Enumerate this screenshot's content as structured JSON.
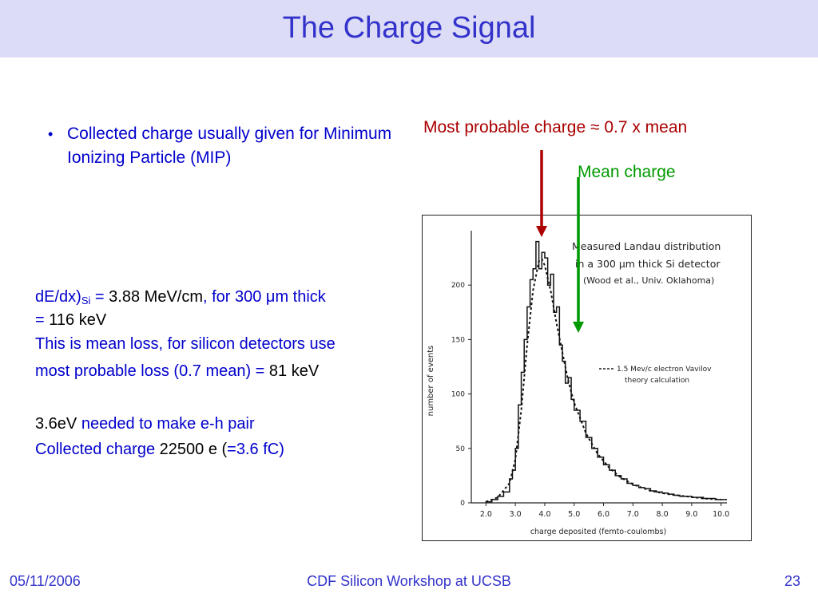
{
  "slide": {
    "title": "The Charge Signal",
    "bullet": {
      "glyph": "•",
      "text": "Collected charge usually given for Minimum Ionizing Particle (MIP)"
    },
    "dedx": {
      "label": "dE/dx)",
      "open_paren": "",
      "sub": "Si",
      "eq": " = ",
      "value": "3.88 MeV/cm",
      "rest": ", for 300 μm thick",
      "line2_eq": "= ",
      "line2_value": "116 keV"
    },
    "mean_loss_line": "This is mean loss, for silicon detectors use",
    "most_probable_line": {
      "text": "most probable loss (0.7 mean) = ",
      "value": "81 keV"
    },
    "eh_pair": {
      "value": "3.6eV",
      "text": " needed to make e-h pair"
    },
    "collected": {
      "label": "Collected charge  ",
      "value": "22500 e",
      "paren_open": " (",
      "fc": "=3.6 fC)"
    },
    "annotations": {
      "most_probable": "Most probable charge ≈ 0.7 x mean",
      "mean": "Mean charge"
    },
    "colors": {
      "title_bar": "#dcdcf6",
      "title_text": "#3333cc",
      "body_text": "#0000cc",
      "most_probable_arrow": "#aa0000",
      "mean_arrow": "#009900"
    }
  },
  "figure": {
    "caption_lines": [
      "Measured Landau distribution",
      "in a 300 μm thick Si detector",
      "(Wood et al., Univ. Oklahoma)"
    ],
    "legend_text_lines": [
      "1.5 Mev/c electron Vavilov",
      "theory calculation"
    ],
    "x_axis_label": "charge deposited (femto-coulombs)",
    "y_axis_label": "number of events",
    "x_ticks": [
      "2.0",
      "3.0",
      "4.0",
      "5.0",
      "6.0",
      "7.0",
      "8.0",
      "9.0",
      "10.0"
    ],
    "y_ticks": [
      "0",
      "50",
      "100",
      "150",
      "200"
    ]
  },
  "chart_data": {
    "type": "line",
    "title": "",
    "xlabel": "charge deposited (femto-coulombs)",
    "ylabel": "number of events",
    "xlim": [
      1.5,
      10.2
    ],
    "ylim": [
      0,
      250
    ],
    "grid": false,
    "legend": "right",
    "series": [
      {
        "name": "",
        "style": "histogram",
        "x": [
          2.0,
          2.2,
          2.4,
          2.6,
          2.8,
          2.9,
          3.0,
          3.1,
          3.2,
          3.3,
          3.4,
          3.5,
          3.6,
          3.7,
          3.8,
          3.9,
          4.0,
          4.1,
          4.2,
          4.3,
          4.4,
          4.5,
          4.6,
          4.7,
          4.8,
          4.9,
          5.0,
          5.2,
          5.4,
          5.6,
          5.8,
          6.0,
          6.2,
          6.4,
          6.6,
          6.8,
          7.0,
          7.2,
          7.4,
          7.6,
          7.8,
          8.0,
          8.2,
          8.4,
          8.6,
          8.8,
          9.0,
          9.2,
          9.4,
          9.6,
          9.8,
          10.0
        ],
        "values": [
          1,
          3,
          6,
          10,
          22,
          30,
          50,
          90,
          120,
          150,
          180,
          205,
          215,
          240,
          215,
          230,
          225,
          200,
          210,
          175,
          180,
          145,
          130,
          110,
          115,
          95,
          85,
          75,
          60,
          50,
          42,
          35,
          30,
          25,
          22,
          18,
          16,
          14,
          13,
          11,
          10,
          9,
          8,
          7,
          6,
          6,
          5,
          5,
          4,
          4,
          3,
          3
        ]
      },
      {
        "name": "1.5 Mev/c electron Vavilov theory calculation",
        "style": "dashed",
        "x": [
          2.0,
          2.4,
          2.8,
          3.0,
          3.2,
          3.4,
          3.6,
          3.8,
          3.9,
          4.0,
          4.2,
          4.4,
          4.6,
          4.8,
          5.0,
          5.4,
          5.8,
          6.2,
          6.6,
          7.0,
          7.6,
          8.2,
          8.8,
          9.4,
          10.0
        ],
        "values": [
          1,
          5,
          18,
          40,
          85,
          145,
          195,
          222,
          224,
          218,
          195,
          165,
          138,
          112,
          92,
          64,
          45,
          32,
          23,
          17,
          11,
          8,
          6,
          4,
          3
        ]
      }
    ]
  }
}
